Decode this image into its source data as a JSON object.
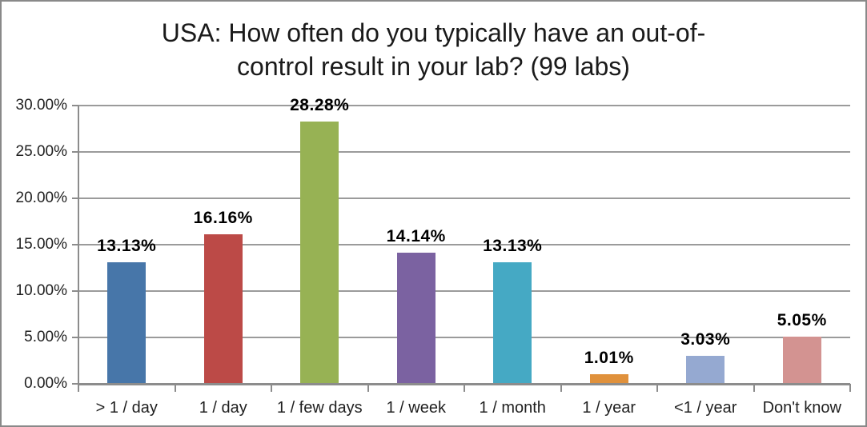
{
  "chart_data": {
    "type": "bar",
    "title": "USA: How often do you typically have an out-of-control result in your lab? (99 labs)",
    "title_lines": [
      "USA: How often do you typically have an out-of-",
      "control result in your lab? (99 labs)"
    ],
    "categories": [
      "> 1 / day",
      "1 / day",
      "1 / few days",
      "1 / week",
      "1 / month",
      "1 / year",
      "<1 / year",
      "Don't know"
    ],
    "values": [
      13.13,
      16.16,
      28.28,
      14.14,
      13.13,
      1.01,
      3.03,
      5.05
    ],
    "data_labels": [
      "13.13%",
      "16.16%",
      "28.28%",
      "14.14%",
      "13.13%",
      "1.01%",
      "3.03%",
      "5.05%"
    ],
    "bar_colors": [
      "#4776A9",
      "#BC4A47",
      "#97B254",
      "#7B62A1",
      "#45A9C4",
      "#E0913C",
      "#95A9D1",
      "#D39391"
    ],
    "y_axis": {
      "min": 0,
      "max": 30,
      "tick_step": 5,
      "tick_labels": [
        "0.00%",
        "5.00%",
        "10.00%",
        "15.00%",
        "20.00%",
        "25.00%",
        "30.00%"
      ]
    },
    "xlabel": "",
    "ylabel": "",
    "grid": true,
    "legend": false,
    "data_label_position": "outside-end"
  },
  "colors": {
    "grid": "#9b9b9b",
    "axis": "#8c8c8c",
    "frame_border": "#898989",
    "title_text": "#1a1a1a",
    "label_text": "#000000"
  }
}
